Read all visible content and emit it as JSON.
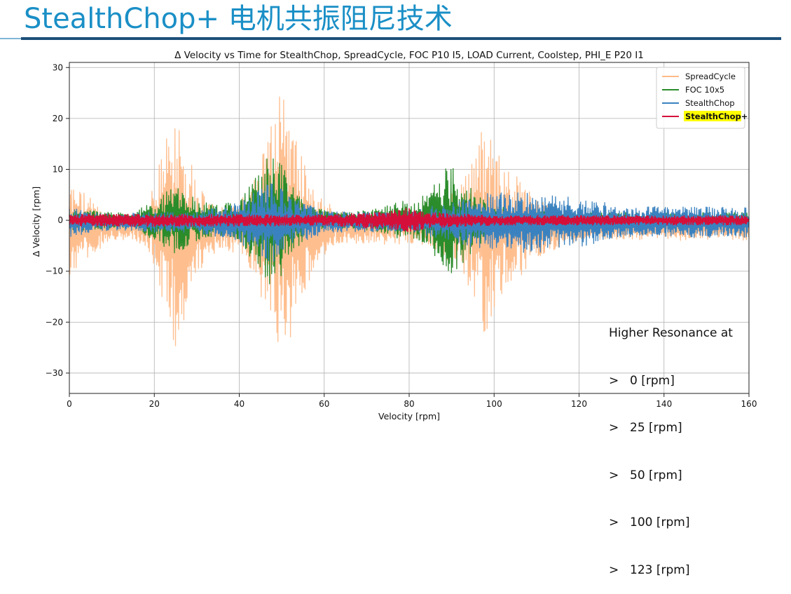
{
  "slide": {
    "title": "StealthChop+ 电机共振阻尼技术"
  },
  "chart_data": {
    "type": "line",
    "title": "Δ Velocity vs Time for StealthChop, SpreadCycle, FOC P10 I5, LOAD Current, Coolstep, PHI_E P20 I1",
    "xlabel": "Velocity [rpm]",
    "ylabel": "Δ Velocity [rpm]",
    "xlim": [
      0,
      160
    ],
    "ylim": [
      -34,
      31
    ],
    "xticks": [
      0,
      20,
      40,
      60,
      80,
      100,
      120,
      140,
      160
    ],
    "yticks": [
      -30,
      -20,
      -10,
      0,
      10,
      20,
      30
    ],
    "grid": true,
    "legend_position": "top-right",
    "series": [
      {
        "name": "SpreadCycle",
        "color": "#ffbb88",
        "x": [
          0,
          2,
          5,
          8,
          12,
          15,
          18,
          20,
          22,
          24,
          25,
          27,
          30,
          33,
          36,
          40,
          43,
          46,
          48,
          50,
          52,
          55,
          58,
          62,
          66,
          70,
          75,
          80,
          85,
          90,
          94,
          97,
          98,
          100,
          103,
          107,
          110,
          115,
          120,
          125,
          130,
          135,
          140,
          145,
          150,
          155,
          160
        ],
        "amplitude": [
          9,
          8,
          6,
          3,
          2,
          2,
          4,
          8,
          16,
          22,
          24,
          18,
          10,
          5,
          4,
          5,
          9,
          16,
          24,
          29,
          22,
          14,
          7,
          4,
          3,
          3,
          3,
          3,
          4,
          7,
          12,
          19,
          21,
          16,
          12,
          9,
          6,
          4,
          3,
          2,
          2,
          2,
          2,
          2,
          2,
          2,
          2
        ],
        "bias": -2
      },
      {
        "name": "FOC 10x5",
        "color": "#2a8c2a",
        "x": [
          0,
          5,
          10,
          15,
          20,
          25,
          30,
          35,
          40,
          44,
          47,
          50,
          53,
          56,
          60,
          65,
          70,
          75,
          78,
          80,
          85,
          88,
          90,
          92,
          95,
          98,
          100,
          105,
          110,
          115,
          120,
          130,
          140,
          150,
          160
        ],
        "amplitude": [
          2,
          2,
          1.5,
          1.5,
          4,
          7,
          4,
          3,
          4,
          9,
          13,
          11,
          6,
          3,
          2,
          1.5,
          2,
          3,
          4,
          3,
          6,
          10,
          11,
          9,
          6,
          4,
          3,
          2.5,
          2,
          1.5,
          1.5,
          1.5,
          1.5,
          1.5,
          1.5
        ],
        "bias": 0
      },
      {
        "name": "StealthChop",
        "color": "#3a82bf",
        "x": [
          0,
          5,
          10,
          20,
          30,
          40,
          45,
          48,
          52,
          60,
          70,
          80,
          85,
          90,
          95,
          100,
          105,
          110,
          115,
          120,
          125,
          130,
          140,
          150,
          160
        ],
        "amplitude": [
          3,
          2,
          1.5,
          2,
          2,
          4,
          7,
          8,
          5,
          2,
          2,
          2,
          3,
          4,
          5,
          6,
          6,
          6,
          5,
          5,
          4,
          3,
          3,
          3,
          3
        ],
        "bias": -0.5
      },
      {
        "name": "StealthChop+",
        "color": "#d4103a",
        "x": [
          0,
          40,
          60,
          75,
          80,
          85,
          100,
          160
        ],
        "amplitude": [
          1.2,
          1.2,
          1.0,
          1.8,
          2.5,
          1.5,
          1.0,
          0.9
        ],
        "bias": 0
      }
    ],
    "annotation": {
      "heading": "Higher Resonance at",
      "prefix": ">",
      "items": [
        "0 [rpm]",
        "25 [rpm]",
        "50 [rpm]",
        "100 [rpm]",
        "123 [rpm]"
      ]
    }
  }
}
